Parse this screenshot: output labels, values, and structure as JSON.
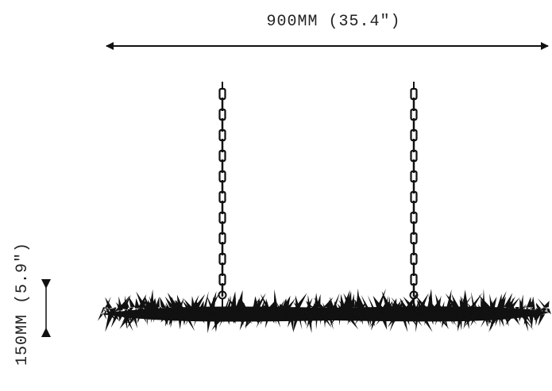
{
  "width_label": "900MM (35.4\")",
  "height_label": "150MM (5.9\")"
}
